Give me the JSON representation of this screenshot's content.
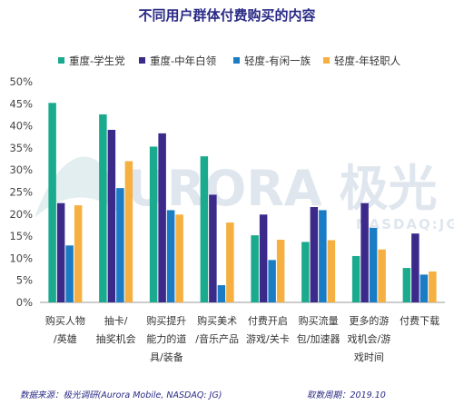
{
  "chart_data": {
    "type": "bar",
    "title": "不同用户群体付费购买的内容",
    "categories": [
      [
        "购买人物",
        "/英雄"
      ],
      [
        "抽卡/",
        "抽奖机会"
      ],
      [
        "购买提升",
        "能力的道",
        "具/装备"
      ],
      [
        "购买美术",
        "/音乐产品"
      ],
      [
        "付费开启",
        "游戏/关卡"
      ],
      [
        "购买流量",
        "包/加速器"
      ],
      [
        "更多的游",
        "戏机会/游",
        "戏时间"
      ],
      [
        "付费下载"
      ]
    ],
    "series": [
      {
        "name": "重度-学生党",
        "color": "#1aab8e",
        "values": [
          45.2,
          42.6,
          35.3,
          33.1,
          15.2,
          13.7,
          10.5,
          7.8
        ]
      },
      {
        "name": "重度-中年白领",
        "color": "#3b2a8a",
        "values": [
          22.5,
          39.1,
          38.3,
          24.4,
          19.9,
          21.6,
          22.5,
          15.6
        ]
      },
      {
        "name": "轻度-有闲一族",
        "color": "#1b7cc6",
        "values": [
          12.9,
          25.9,
          20.9,
          3.9,
          9.6,
          20.9,
          16.9,
          6.3
        ]
      },
      {
        "name": "轻度-年轻职人",
        "color": "#f5b041",
        "values": [
          22.0,
          32.0,
          19.9,
          18.1,
          14.2,
          14.1,
          12.0,
          7.0
        ]
      }
    ],
    "yticks": [
      "0%",
      "5%",
      "10%",
      "15%",
      "20%",
      "25%",
      "30%",
      "35%",
      "40%",
      "45%",
      "50%"
    ],
    "ylim": [
      0,
      50
    ],
    "legend_position": "top",
    "grid": false
  },
  "watermark": {
    "main": "URORA 极光",
    "sub": "NASDAQ:JG"
  },
  "footer": {
    "source": "数据来源：极光调研(Aurora Mobile, NASDAQ: JG)",
    "period": "取数周期：2019.10"
  }
}
